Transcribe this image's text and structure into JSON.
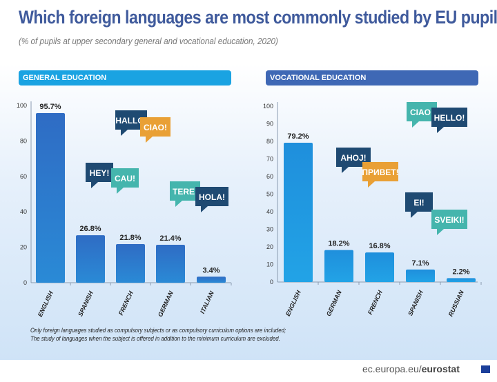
{
  "title": "Which foreign languages are most commonly studied by EU pupils?",
  "subtitle": "(% of pupils at upper secondary general and vocational education, 2020)",
  "note": [
    "Only foreign languages studied as compulsory subjects or as compulsory curriculum options are included;",
    "The study of languages when the subject is offered in addition to the minimum curriculum are excluded."
  ],
  "source": {
    "prefix": "ec.europa.eu/",
    "brand": "eurostat"
  },
  "colors": {
    "title": "#3f5a9c",
    "general_header": "#1aa3e2",
    "vocational_header": "#3f68b5",
    "bubble_navy": "#1f4a72",
    "bubble_teal": "#45b5ad",
    "bubble_orange": "#e9a035"
  },
  "chart_data": [
    {
      "type": "bar",
      "title": "GENERAL EDUCATION",
      "categories": [
        "ENGLISH",
        "SPANISH",
        "FRENCH",
        "GERMAN",
        "ITALIAN"
      ],
      "values": [
        95.7,
        26.8,
        21.8,
        21.4,
        3.4
      ],
      "labels": [
        "95.7%",
        "26.8%",
        "21.8%",
        "21.4%",
        "3.4%"
      ],
      "ylim": [
        0,
        100
      ],
      "yticks": [
        0,
        20,
        40,
        60,
        80,
        100
      ],
      "grid": false,
      "bubbles": [
        {
          "text": "HALLO!",
          "color": "navy"
        },
        {
          "text": "CIAO!",
          "color": "orange"
        },
        {
          "text": "HEY!",
          "color": "navy"
        },
        {
          "text": "CAU!",
          "color": "teal"
        },
        {
          "text": "TERE!",
          "color": "teal"
        },
        {
          "text": "HOLA!",
          "color": "navy"
        }
      ]
    },
    {
      "type": "bar",
      "title": "VOCATIONAL EDUCATION",
      "categories": [
        "ENGLISH",
        "GERMAN",
        "FRENCH",
        "SPANISH",
        "RUSSIAN"
      ],
      "values": [
        79.2,
        18.2,
        16.8,
        7.1,
        2.2
      ],
      "labels": [
        "79.2%",
        "18.2%",
        "16.8%",
        "7.1%",
        "2.2%"
      ],
      "ylim": [
        0,
        100
      ],
      "yticks": [
        0,
        10,
        20,
        30,
        40,
        50,
        60,
        70,
        80,
        90,
        100
      ],
      "grid": false,
      "bubbles": [
        {
          "text": "CIAO!",
          "color": "teal"
        },
        {
          "text": "HELLO!",
          "color": "navy"
        },
        {
          "text": "AHOJ!",
          "color": "navy"
        },
        {
          "text": "ПРИВЕТ!",
          "color": "orange"
        },
        {
          "text": "EI!",
          "color": "navy"
        },
        {
          "text": "SVEIKI!",
          "color": "teal"
        }
      ]
    }
  ]
}
